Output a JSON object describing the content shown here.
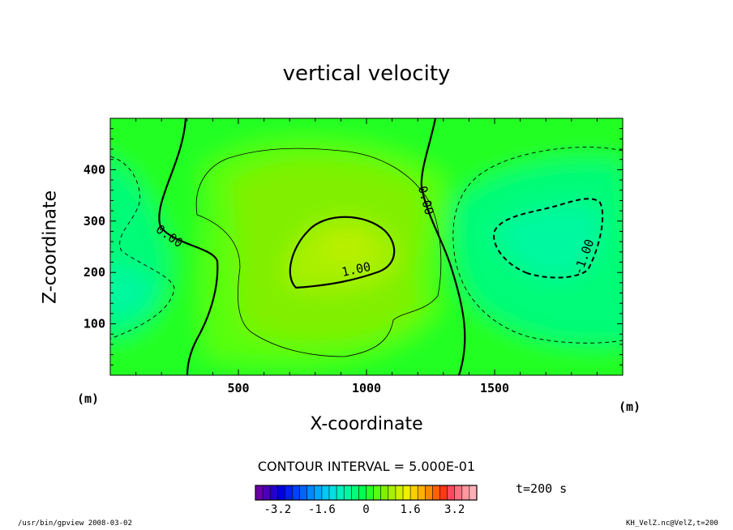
{
  "chart_data": {
    "type": "heatmap",
    "title": "vertical velocity",
    "xlabel": "X-coordinate",
    "ylabel": "Z-coordinate",
    "x_unit": "(m)",
    "y_unit": "(m)",
    "xlim": [
      0,
      2000
    ],
    "ylim": [
      0,
      500
    ],
    "x_ticks": [
      500,
      1000,
      1500
    ],
    "y_ticks": [
      100,
      200,
      300,
      400
    ],
    "contour_interval_text": "CONTOUR INTERVAL = 5.000E-01",
    "time_label": "t=200 s",
    "contour_labels": [
      {
        "text": "0.00",
        "x": 230,
        "z": 270
      },
      {
        "text": "0.00",
        "x": 1230,
        "z": 340
      },
      {
        "text": "1.00",
        "x": 960,
        "z": 205
      },
      {
        "text": "-1.00",
        "x": 1850,
        "z": 230
      }
    ],
    "features": [
      {
        "type": "max",
        "x": 900,
        "z": 250,
        "value": 1.3
      },
      {
        "type": "min",
        "x": 1700,
        "z": 250,
        "value": -1.3
      },
      {
        "type": "min",
        "x": 50,
        "z": 180,
        "value": -1.0
      }
    ],
    "colorbar": {
      "range": [
        -4,
        4
      ],
      "tick_labels": [
        "-3.2",
        "-1.6",
        "0",
        "1.6",
        "3.2"
      ],
      "tick_values": [
        -3.2,
        -1.6,
        0,
        1.6,
        3.2
      ],
      "colors": [
        "#6a00a8",
        "#4b00b8",
        "#2400cc",
        "#0000e0",
        "#0020f0",
        "#0040ff",
        "#0064ff",
        "#0088ff",
        "#00a8ff",
        "#00c8f8",
        "#00e0e0",
        "#00f0c0",
        "#00f8a0",
        "#00fc78",
        "#00ff50",
        "#28ff28",
        "#58ff10",
        "#80f000",
        "#a8f000",
        "#d0f000",
        "#f0f000",
        "#f8d000",
        "#ffb000",
        "#ff8800",
        "#ff6000",
        "#ff3818",
        "#ff4860",
        "#ff7080",
        "#ff98a0",
        "#ffb0b8"
      ]
    }
  },
  "footer": {
    "left": "/usr/bin/gpview   2008-03-02",
    "right": "KH_VelZ.nc@VelZ,t=200"
  }
}
